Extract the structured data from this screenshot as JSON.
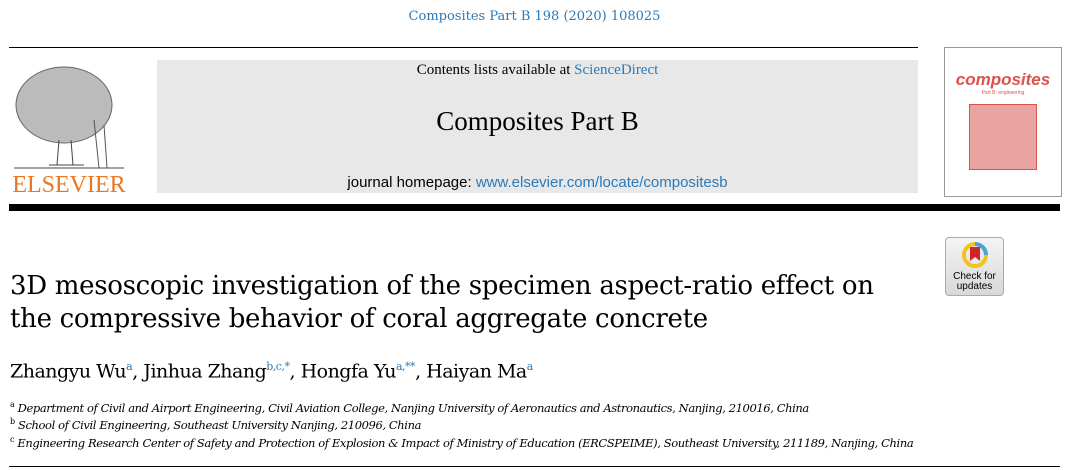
{
  "citation": "Composites Part B 198 (2020) 108025",
  "masthead": {
    "contents_prefix": "Contents lists available at ",
    "contents_link": "ScienceDirect",
    "journal_title": "Composites Part B",
    "homepage_prefix": "journal homepage: ",
    "homepage_link": "www.elsevier.com/locate/compositesb",
    "publisher": "ELSEVIER",
    "cover_title": "composites",
    "cover_subtitle": "Part B: engineering"
  },
  "check_updates": {
    "line1": "Check for",
    "line2": "updates"
  },
  "article": {
    "title": "3D mesoscopic investigation of the specimen aspect-ratio effect on the compressive behavior of coral aggregate concrete",
    "authors": [
      {
        "name": "Zhangyu Wu",
        "sup": "a",
        "sep": ", "
      },
      {
        "name": "Jinhua Zhang",
        "sup": "b,c,*",
        "sep": ", "
      },
      {
        "name": "Hongfa Yu",
        "sup": "a,**",
        "sep": ", "
      },
      {
        "name": "Haiyan Ma",
        "sup": "a",
        "sep": ""
      }
    ],
    "affiliations": [
      {
        "label": "a",
        "text": "Department of Civil and Airport Engineering, Civil Aviation College, Nanjing University of Aeronautics and Astronautics, Nanjing, 210016, China"
      },
      {
        "label": "b",
        "text": "School of Civil Engineering, Southeast University Nanjing, 210096, China"
      },
      {
        "label": "c",
        "text": "Engineering Research Center of Safety and Protection of Explosion & Impact of Ministry of Education (ERCSPEIME), Southeast University, 211189, Nanjing, China"
      }
    ]
  },
  "colors": {
    "link": "#2a7ab8",
    "elsevier": "#e87722",
    "cover": "#d9534f"
  }
}
